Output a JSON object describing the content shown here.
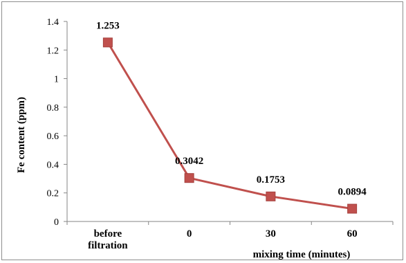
{
  "chart_data": {
    "type": "line",
    "title": "",
    "xlabel": "mixing time (minutes)",
    "ylabel": "Fe content (ppm)",
    "categories": [
      [
        "before",
        "filtration"
      ],
      [
        "0"
      ],
      [
        "30"
      ],
      [
        "60"
      ]
    ],
    "ylim": [
      0,
      1.4
    ],
    "yticks": [
      "0",
      "0.2",
      "0.4",
      "0.6",
      "0.8",
      "1",
      "1.2",
      "1.4"
    ],
    "ytick_values": [
      0,
      0.2,
      0.4,
      0.6,
      0.8,
      1,
      1.2,
      1.4
    ],
    "series": [
      {
        "values": [
          1.253,
          0.3042,
          0.1753,
          0.0894
        ],
        "labels": [
          "1.253",
          "0.3042",
          "0.1753",
          "0.0894"
        ],
        "color": "#c0504d",
        "marker": "square"
      }
    ],
    "grid": false,
    "legend": "none"
  }
}
